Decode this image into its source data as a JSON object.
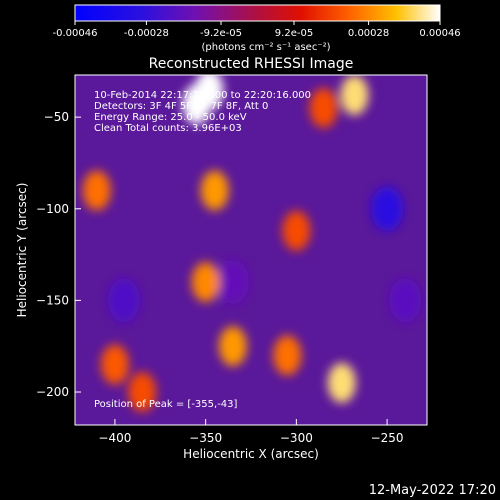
{
  "colorbar": {
    "ticks": [
      {
        "label": "-0.00046",
        "value": -0.00046
      },
      {
        "label": "-0.00028",
        "value": -0.00028
      },
      {
        "label": "-9.2e-05",
        "value": -9.2e-05
      },
      {
        "label": "9.2e-05",
        "value": 9.2e-05
      },
      {
        "label": "0.00028",
        "value": 0.00028
      },
      {
        "label": "0.00046",
        "value": 0.00046
      }
    ],
    "range": [
      -0.00046,
      0.00046
    ],
    "unit_label": "(photons cm⁻² s⁻¹ asec⁻²)",
    "colormap": "blue-purple-red-orange-yellow-white"
  },
  "chart_data": {
    "type": "heatmap",
    "title": "Reconstructed RHESSI Image",
    "xlabel": "Heliocentric X (arcsec)",
    "ylabel": "Heliocentric Y (arcsec)",
    "xlim": [
      -422,
      -228
    ],
    "ylim": [
      -218,
      -27
    ],
    "xticks": [
      -400,
      -350,
      -300,
      -250
    ],
    "yticks": [
      -50,
      -100,
      -150,
      -200
    ],
    "hot_regions": [
      {
        "x": -348,
        "y": -35,
        "value": 0.00046
      },
      {
        "x": -355,
        "y": -43,
        "value": 0.00046
      },
      {
        "x": -345,
        "y": -90,
        "value": 0.0003
      },
      {
        "x": -350,
        "y": -140,
        "value": 0.00028
      },
      {
        "x": -335,
        "y": -175,
        "value": 0.0003
      },
      {
        "x": -285,
        "y": -45,
        "value": 0.0002
      },
      {
        "x": -268,
        "y": -38,
        "value": 0.0004
      },
      {
        "x": -300,
        "y": -112,
        "value": 0.0002
      },
      {
        "x": -305,
        "y": -180,
        "value": 0.00025
      },
      {
        "x": -275,
        "y": -195,
        "value": 0.0004
      },
      {
        "x": -410,
        "y": -90,
        "value": 0.00025
      },
      {
        "x": -400,
        "y": -185,
        "value": 0.00022
      },
      {
        "x": -385,
        "y": -200,
        "value": 0.0002
      }
    ],
    "cold_regions": [
      {
        "x": -250,
        "y": -100,
        "value": -0.0003
      },
      {
        "x": -395,
        "y": -150,
        "value": -0.00022
      },
      {
        "x": -335,
        "y": -140,
        "value": -0.00018
      },
      {
        "x": -240,
        "y": -150,
        "value": -0.0002
      }
    ],
    "annotations": [
      "10-Feb-2014 22:17:28.000 to 22:20:16.000",
      "Detectors: 3F 4F 5F 6F 7F 8F, Att 0",
      "Energy Range: 25.0 - 50.0 keV",
      "Clean     Total counts: 3.96E+03"
    ],
    "peak_text": "Position of Peak = [-355,-43]"
  },
  "timestamp": "12-May-2022 17:20"
}
